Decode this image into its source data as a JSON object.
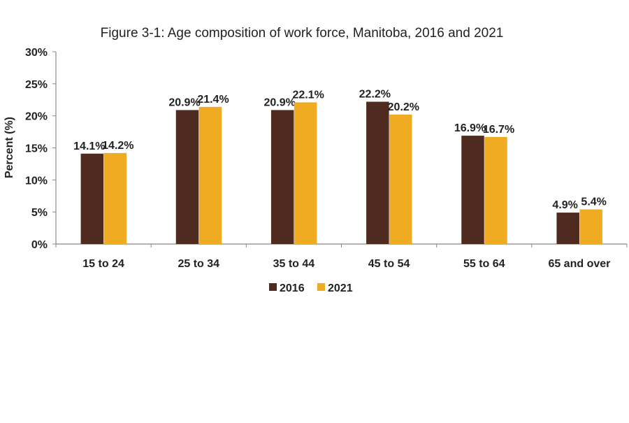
{
  "chart_data": {
    "type": "bar",
    "title": "Figure 3-1: Age composition of work force, Manitoba, 2016 and 2021",
    "xlabel": "",
    "ylabel": "Percent (%)",
    "ylim": [
      0,
      30
    ],
    "yticks": [
      "0%",
      "5%",
      "10%",
      "15%",
      "20%",
      "25%",
      "30%"
    ],
    "grid": false,
    "legend_position": "bottom",
    "categories": [
      "15 to 24",
      "25 to 34",
      "35 to 44",
      "45 to 54",
      "55 to 64",
      "65 and over"
    ],
    "series": [
      {
        "name": "2016",
        "color": "#4e2a1f",
        "values": [
          14.1,
          20.9,
          20.9,
          22.2,
          16.9,
          4.9
        ],
        "labels": [
          "14.1%",
          "20.9%",
          "20.9%",
          "22.2%",
          "16.9%",
          "4.9%"
        ]
      },
      {
        "name": "2021",
        "color": "#efab22",
        "values": [
          14.2,
          21.4,
          22.1,
          20.2,
          16.7,
          5.4
        ],
        "labels": [
          "14.2%",
          "21.4%",
          "22.1%",
          "20.2%",
          "16.7%",
          "5.4%"
        ]
      }
    ]
  }
}
